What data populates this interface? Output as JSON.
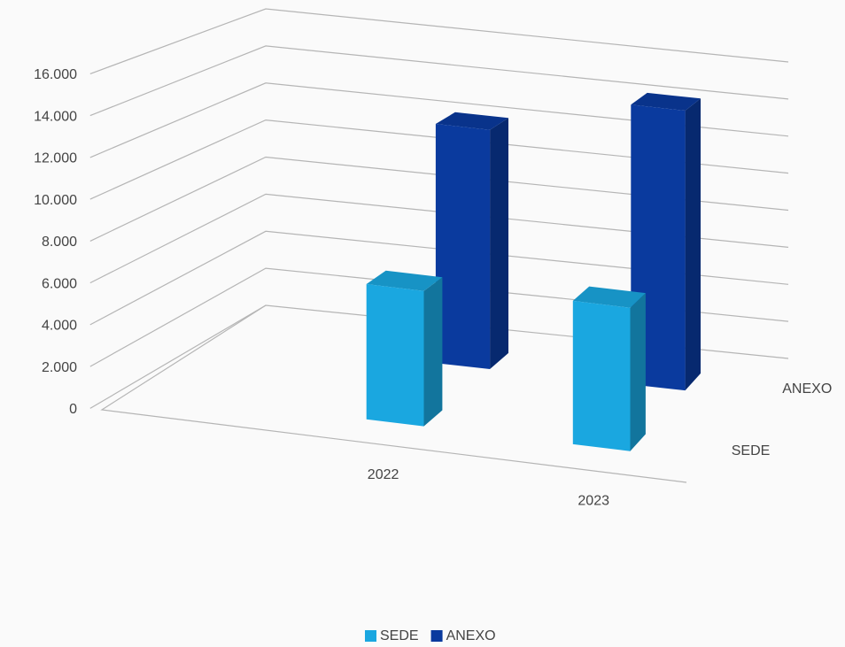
{
  "chart_data": {
    "type": "bar3d",
    "categories": [
      "2022",
      "2023"
    ],
    "series": [
      {
        "name": "SEDE",
        "color": "#1aa7e0",
        "values": [
          6600,
          7000
        ]
      },
      {
        "name": "ANEXO",
        "color": "#0a3a9e",
        "values": [
          12400,
          14500
        ]
      }
    ],
    "ylim": [
      0,
      16000
    ],
    "yticks": [
      {
        "value": 0,
        "label": "0"
      },
      {
        "value": 2000,
        "label": "2.000"
      },
      {
        "value": 4000,
        "label": "4.000"
      },
      {
        "value": 6000,
        "label": "6.000"
      },
      {
        "value": 8000,
        "label": "8.000"
      },
      {
        "value": 10000,
        "label": "10.000"
      },
      {
        "value": 12000,
        "label": "12.000"
      },
      {
        "value": 14000,
        "label": "14.000"
      },
      {
        "value": 16000,
        "label": "16.000"
      }
    ],
    "grid": true,
    "legend": "bottom"
  }
}
